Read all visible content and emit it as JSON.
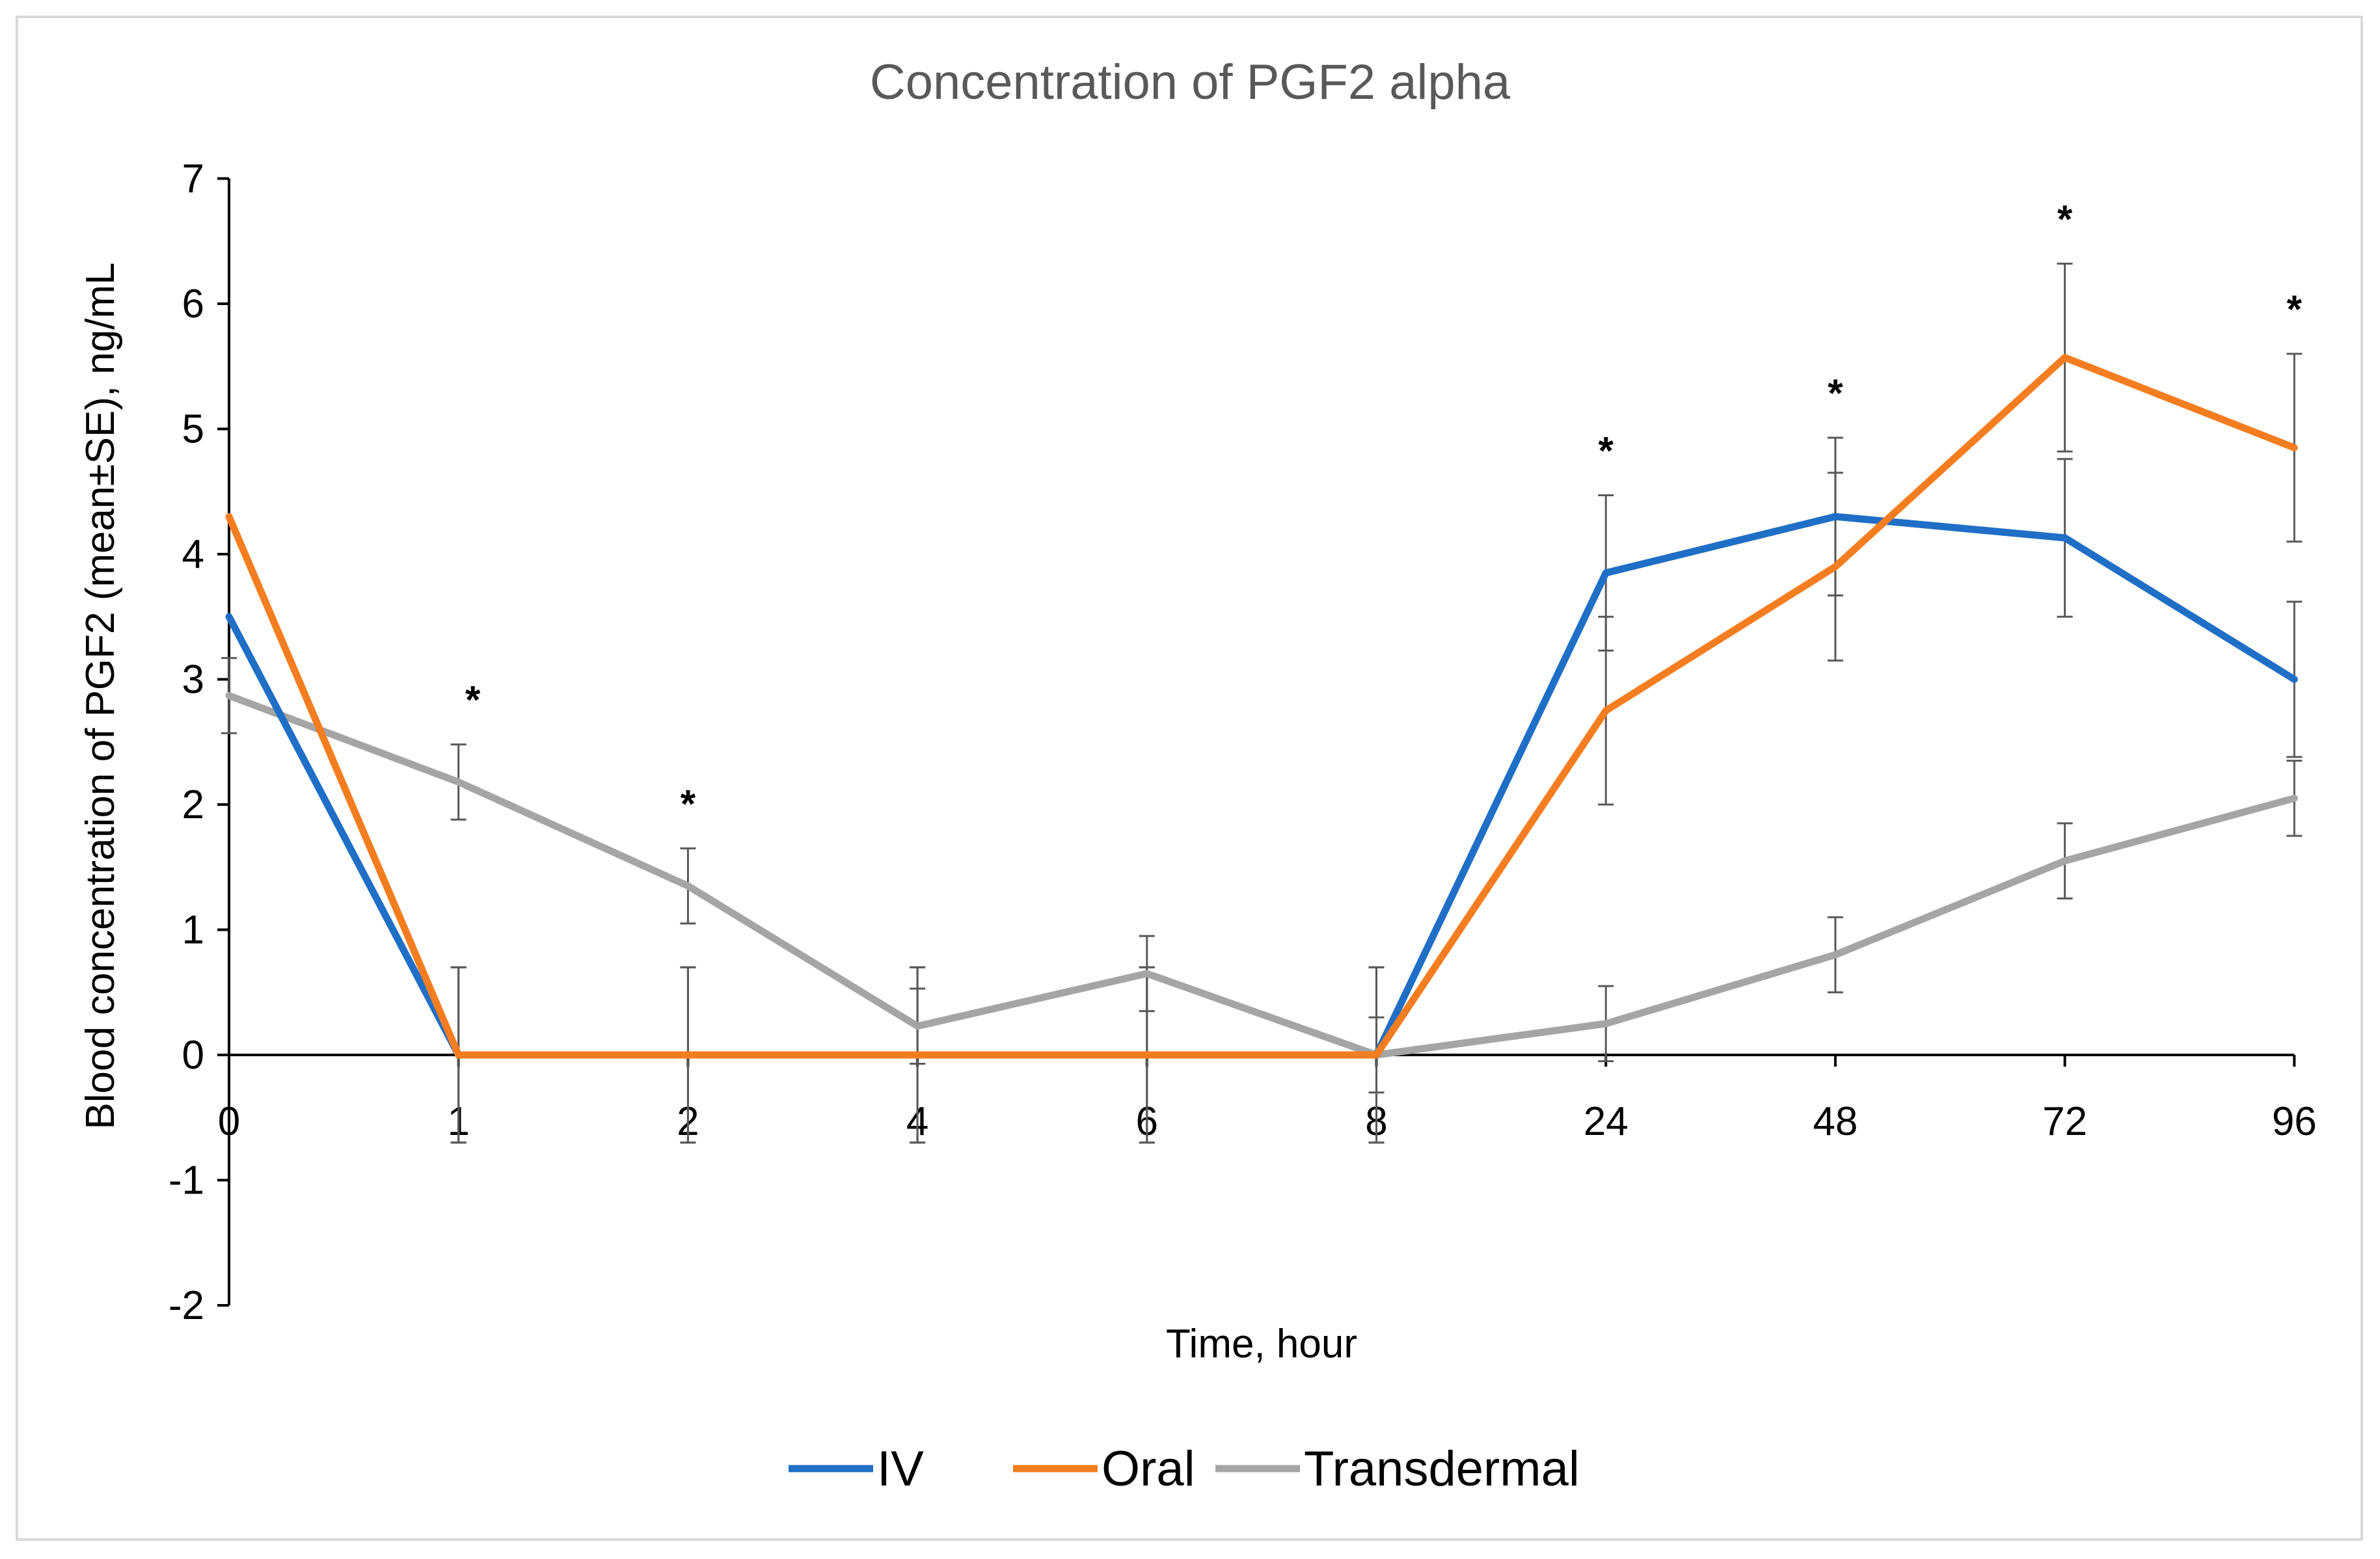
{
  "chart_data": {
    "type": "line",
    "title": "Concentration of PGF2 alpha",
    "xlabel": "Time, hour",
    "ylabel": "Blood concentration of PGF2 (mean±SE), ng/mL",
    "categories": [
      "0",
      "1",
      "2",
      "4",
      "6",
      "8",
      "24",
      "48",
      "72",
      "96"
    ],
    "ylim": [
      -2,
      7
    ],
    "yticks": [
      7,
      6,
      5,
      4,
      3,
      2,
      1,
      0,
      -1,
      -2
    ],
    "legend_position": "bottom",
    "series": [
      {
        "name": "IV",
        "color": "#1f6fc6",
        "values": [
          3.5,
          0,
          0,
          0,
          0,
          0,
          3.85,
          4.3,
          4.13,
          3.0
        ],
        "errors": [
          0,
          0.7,
          0.7,
          0.7,
          0.7,
          0.7,
          0.62,
          0.63,
          0.63,
          0.62
        ]
      },
      {
        "name": "Oral",
        "color": "#f47e1f",
        "values": [
          4.3,
          0,
          0,
          0,
          0,
          0,
          2.75,
          3.9,
          5.57,
          4.85
        ],
        "errors": [
          0,
          0.7,
          0.7,
          0.7,
          0.7,
          0.7,
          0.75,
          0.75,
          0.75,
          0.75
        ]
      },
      {
        "name": "Transdermal",
        "color": "#a5a5a5",
        "values": [
          2.87,
          2.18,
          1.35,
          0.23,
          0.65,
          0,
          0.25,
          0.8,
          1.55,
          2.05
        ],
        "errors": [
          0.3,
          0.3,
          0.3,
          0.3,
          0.3,
          0.3,
          0.3,
          0.3,
          0.3,
          0.3
        ]
      }
    ],
    "significance": {
      "marker": "*",
      "categories": [
        "1",
        "2",
        "24",
        "48",
        "72",
        "96"
      ]
    }
  }
}
